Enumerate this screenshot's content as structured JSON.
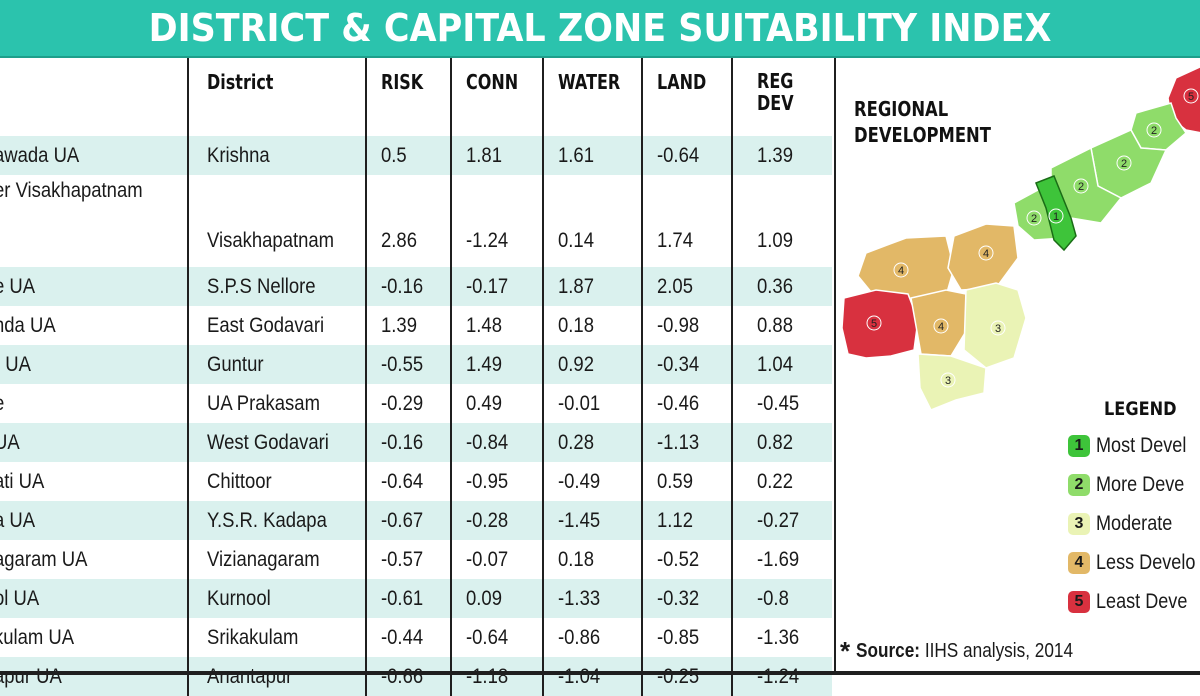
{
  "title": "DISTRICT & CAPITAL ZONE SUITABILITY INDEX",
  "table": {
    "headers": {
      "ua": "",
      "district": "District",
      "risk": "RISK",
      "conn": "CONN",
      "water": "WATER",
      "land": "LAND",
      "regdev": "REG DEV"
    },
    "rows": [
      {
        "ua": "awada UA",
        "district": "Krishna",
        "risk": "0.5",
        "conn": "1.81",
        "water": "1.61",
        "land": "-0.64",
        "regdev": "1.39"
      },
      {
        "ua": "er Visakhapatnam",
        "district": "Visakhapatnam",
        "risk": "2.86",
        "conn": "-1.24",
        "water": "0.14",
        "land": "1.74",
        "regdev": "1.09"
      },
      {
        "ua": "e UA",
        "district": "S.P.S Nellore",
        "risk": "-0.16",
        "conn": "-0.17",
        "water": "1.87",
        "land": "2.05",
        "regdev": "0.36"
      },
      {
        "ua": "nda UA",
        "district": "East Godavari",
        "risk": "1.39",
        "conn": "1.48",
        "water": "0.18",
        "land": "-0.98",
        "regdev": "0.88"
      },
      {
        "ua": "r UA",
        "district": "Guntur",
        "risk": "-0.55",
        "conn": "1.49",
        "water": "0.92",
        "land": "-0.34",
        "regdev": "1.04"
      },
      {
        "ua": "e",
        "district": "UA Prakasam",
        "risk": "-0.29",
        "conn": "0.49",
        "water": "-0.01",
        "land": "-0.46",
        "regdev": "-0.45"
      },
      {
        "ua": "UA",
        "district": "West Godavari",
        "risk": "-0.16",
        "conn": "-0.84",
        "water": "0.28",
        "land": "-1.13",
        "regdev": "0.82"
      },
      {
        "ua": "ati UA",
        "district": "Chittoor",
        "risk": "-0.64",
        "conn": "-0.95",
        "water": "-0.49",
        "land": "0.59",
        "regdev": "0.22"
      },
      {
        "ua": "a UA",
        "district": "Y.S.R. Kadapa",
        "risk": "-0.67",
        "conn": "-0.28",
        "water": "-1.45",
        "land": "1.12",
        "regdev": "-0.27"
      },
      {
        "ua": "agaram UA",
        "district": "Vizianagaram",
        "risk": "-0.57",
        "conn": "-0.07",
        "water": "0.18",
        "land": "-0.52",
        "regdev": "-1.69"
      },
      {
        "ua": "ol UA",
        "district": "Kurnool",
        "risk": "-0.61",
        "conn": "0.09",
        "water": "-1.33",
        "land": "-0.32",
        "regdev": "-0.8"
      },
      {
        "ua": "kulam UA",
        "district": "Srikakulam",
        "risk": "-0.44",
        "conn": "-0.64",
        "water": "-0.86",
        "land": "-0.85",
        "regdev": "-1.36"
      },
      {
        "ua": "apur UA",
        "district": "Anantapur",
        "risk": "-0.66",
        "conn": "-1.18",
        "water": "-1.04",
        "land": "-0.25",
        "regdev": "-1.24"
      }
    ]
  },
  "map": {
    "title": "REGIONAL DEVELOPMENT",
    "region_numbers": [
      "5",
      "2",
      "2",
      "2",
      "2",
      "1",
      "4",
      "4",
      "5",
      "4",
      "3",
      "3"
    ],
    "legend_title": "LEGEND",
    "legend": [
      {
        "num": "1",
        "label": "Most Devel",
        "color": "#3ec43a"
      },
      {
        "num": "2",
        "label": "More Deve",
        "color": "#8fdc6a"
      },
      {
        "num": "3",
        "label": "Moderate",
        "color": "#eaf3b5"
      },
      {
        "num": "4",
        "label": "Less Develo",
        "color": "#e2b867"
      },
      {
        "num": "5",
        "label": "Least Deve",
        "color": "#d8313f"
      }
    ]
  },
  "source": {
    "star": "*",
    "label": "Source:",
    "text": "IIHS analysis, 2014"
  },
  "colors": {
    "banner": "#2bc3ad",
    "row_shade": "#daf1ee"
  }
}
